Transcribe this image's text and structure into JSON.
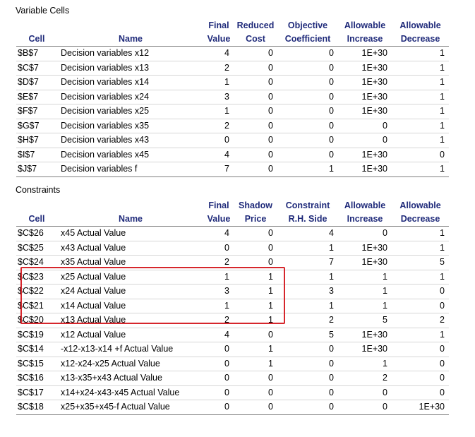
{
  "variable_cells": {
    "title": "Variable Cells",
    "headers": {
      "cell": [
        "",
        "Cell"
      ],
      "name": [
        "",
        "Name"
      ],
      "final_value": [
        "Final",
        "Value"
      ],
      "reduced_cost": [
        "Reduced",
        "Cost"
      ],
      "objective_coefficient": [
        "Objective",
        "Coefficient"
      ],
      "allowable_increase": [
        "Allowable",
        "Increase"
      ],
      "allowable_decrease": [
        "Allowable",
        "Decrease"
      ]
    },
    "rows": [
      [
        "$B$7",
        "Decision variables x12",
        "4",
        "0",
        "0",
        "1E+30",
        "1"
      ],
      [
        "$C$7",
        "Decision variables x13",
        "2",
        "0",
        "0",
        "1E+30",
        "1"
      ],
      [
        "$D$7",
        "Decision variables x14",
        "1",
        "0",
        "0",
        "1E+30",
        "1"
      ],
      [
        "$E$7",
        "Decision variables x24",
        "3",
        "0",
        "0",
        "1E+30",
        "1"
      ],
      [
        "$F$7",
        "Decision variables x25",
        "1",
        "0",
        "0",
        "1E+30",
        "1"
      ],
      [
        "$G$7",
        "Decision variables x35",
        "2",
        "0",
        "0",
        "0",
        "1"
      ],
      [
        "$H$7",
        "Decision variables x43",
        "0",
        "0",
        "0",
        "0",
        "1"
      ],
      [
        "$I$7",
        "Decision variables x45",
        "4",
        "0",
        "0",
        "1E+30",
        "0"
      ],
      [
        "$J$7",
        "Decision variables f",
        "7",
        "0",
        "1",
        "1E+30",
        "1"
      ]
    ]
  },
  "constraints": {
    "title": "Constraints",
    "headers": {
      "cell": [
        "",
        "Cell"
      ],
      "name": [
        "",
        "Name"
      ],
      "final_value": [
        "Final",
        "Value"
      ],
      "shadow_price": [
        "Shadow",
        "Price"
      ],
      "constraint_rhs": [
        "Constraint",
        "R.H. Side"
      ],
      "allowable_increase": [
        "Allowable",
        "Increase"
      ],
      "allowable_decrease": [
        "Allowable",
        "Decrease"
      ]
    },
    "rows": [
      [
        "$C$26",
        "x45 Actual Value",
        "4",
        "0",
        "4",
        "0",
        "1"
      ],
      [
        "$C$25",
        "x43 Actual Value",
        "0",
        "0",
        "1",
        "1E+30",
        "1"
      ],
      [
        "$C$24",
        "x35 Actual Value",
        "2",
        "0",
        "7",
        "1E+30",
        "5"
      ],
      [
        "$C$23",
        "x25 Actual Value",
        "1",
        "1",
        "1",
        "1",
        "1"
      ],
      [
        "$C$22",
        "x24 Actual Value",
        "3",
        "1",
        "3",
        "1",
        "0"
      ],
      [
        "$C$21",
        "x14 Actual Value",
        "1",
        "1",
        "1",
        "1",
        "0"
      ],
      [
        "$C$20",
        "x13 Actual Value",
        "2",
        "1",
        "2",
        "5",
        "2"
      ],
      [
        "$C$19",
        "x12 Actual Value",
        "4",
        "0",
        "5",
        "1E+30",
        "1"
      ],
      [
        "$C$14",
        "-x12-x13-x14 +f Actual Value",
        "0",
        "1",
        "0",
        "1E+30",
        "0"
      ],
      [
        "$C$15",
        "x12-x24-x25 Actual Value",
        "0",
        "1",
        "0",
        "1",
        "0"
      ],
      [
        "$C$16",
        "x13-x35+x43 Actual Value",
        "0",
        "0",
        "0",
        "2",
        "0"
      ],
      [
        "$C$17",
        "x14+x24-x43-x45 Actual Value",
        "0",
        "0",
        "0",
        "0",
        "0"
      ],
      [
        "$C$18",
        "x25+x35+x45-f Actual Value",
        "0",
        "0",
        "0",
        "0",
        "1E+30"
      ]
    ]
  },
  "highlight": {
    "color": "#d6262c"
  }
}
